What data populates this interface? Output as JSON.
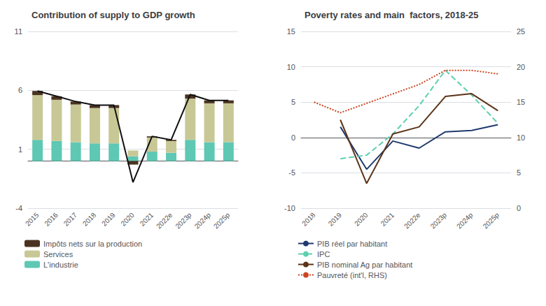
{
  "chart_data": [
    {
      "type": "bar",
      "title": "Contribution of supply to GDP growth",
      "stacked": true,
      "categories": [
        "2015",
        "2016",
        "2017",
        "2018",
        "2019",
        "2020",
        "2021",
        "2022e",
        "2023p",
        "2024p",
        "2025p"
      ],
      "series": [
        {
          "name": "L'industrie",
          "color": "#5ec8b4",
          "values": [
            1.8,
            1.7,
            1.6,
            1.5,
            1.5,
            0.4,
            0.8,
            0.7,
            1.8,
            1.6,
            1.6
          ]
        },
        {
          "name": "Services",
          "color": "#c8c896",
          "values": [
            3.8,
            3.5,
            3.2,
            3.0,
            3.0,
            0.5,
            1.2,
            1.0,
            3.5,
            3.3,
            3.3
          ]
        },
        {
          "name": "Impôts nets sur la production",
          "color": "#4a3320",
          "values": [
            0.35,
            0.3,
            0.25,
            0.25,
            0.25,
            -0.3,
            0.1,
            0.1,
            0.35,
            0.25,
            0.25
          ]
        },
        {
          "type": "line",
          "color": "#111111",
          "line_style": "solid",
          "values": [
            5.95,
            5.5,
            5.05,
            4.75,
            4.75,
            -1.8,
            2.1,
            1.8,
            5.65,
            5.15,
            5.15
          ]
        }
      ],
      "ylim": [
        -4,
        11
      ],
      "yticks": [
        -4,
        1,
        6,
        11
      ],
      "grid": true,
      "legend": "lower left"
    },
    {
      "type": "line",
      "title": "Poverty rates and main  factors, 2018-25",
      "categories": [
        "2018",
        "2019",
        "2020",
        "2021",
        "2022e",
        "2023p",
        "2024p",
        "2025p"
      ],
      "series": [
        {
          "name": "PIB réel par habitant",
          "color": "#1f3a6e",
          "line_style": "solid",
          "values": [
            null,
            1.5,
            -4.5,
            -0.5,
            -1.5,
            0.8,
            1.0,
            1.8
          ]
        },
        {
          "name": "IPC",
          "color": "#5ecfb0",
          "line_style": "dashed",
          "values": [
            null,
            -3.0,
            -2.5,
            0.5,
            4.5,
            9.5,
            6.0,
            2.0
          ]
        },
        {
          "name": "PIB nominal Ag par habitant",
          "color": "#5c3317",
          "line_style": "solid",
          "values": [
            null,
            2.5,
            -6.5,
            0.5,
            1.5,
            5.8,
            6.2,
            3.8
          ]
        },
        {
          "name": "Pauvreté (int'l, RHS)",
          "color": "#cc4422",
          "line_style": "dotted",
          "axis": "y2",
          "x": [
            "2018",
            "2019",
            "2022e",
            "2023p",
            "2024p",
            "2025p"
          ],
          "values": [
            15.0,
            13.5,
            17.5,
            19.5,
            19.5,
            19.0
          ]
        }
      ],
      "ylim": [
        -10,
        15
      ],
      "yticks": [
        -10,
        -5,
        0,
        5,
        10,
        15
      ],
      "y2lim": [
        0,
        25
      ],
      "y2ticks": [
        0,
        5,
        10,
        15,
        20,
        25
      ],
      "grid": true,
      "legend": "lower left"
    }
  ]
}
